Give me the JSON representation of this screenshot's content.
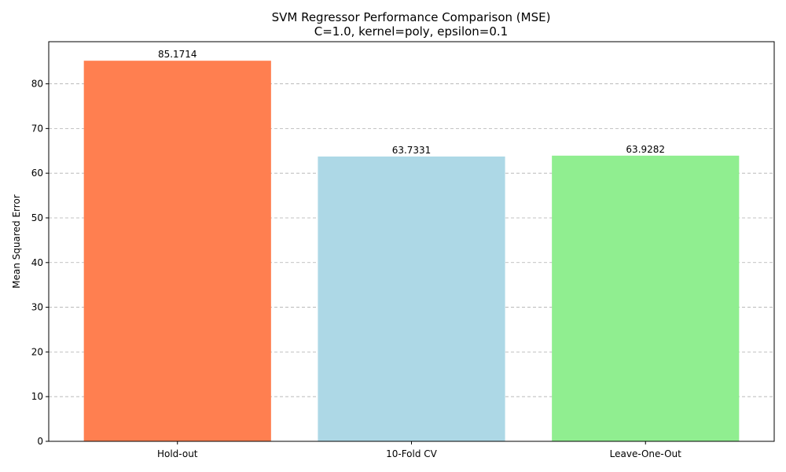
{
  "chart_data": {
    "type": "bar",
    "title": "SVM Regressor Performance Comparison (MSE)",
    "subtitle": "C=1.0, kernel=poly, epsilon=0.1",
    "xlabel": "",
    "ylabel": "Mean Squared Error",
    "categories": [
      "Hold-out",
      "10-Fold CV",
      "Leave-One-Out"
    ],
    "values": [
      85.1714,
      63.7331,
      63.9282
    ],
    "data_labels": [
      "85.1714",
      "63.7331",
      "63.9282"
    ],
    "colors": [
      "#ff7f50",
      "#add8e6",
      "#90ee90"
    ],
    "ylim": [
      0,
      89.43
    ],
    "yticks": [
      0,
      10,
      20,
      30,
      40,
      50,
      60,
      70,
      80
    ],
    "grid": "y-dashed",
    "legend": "none"
  }
}
